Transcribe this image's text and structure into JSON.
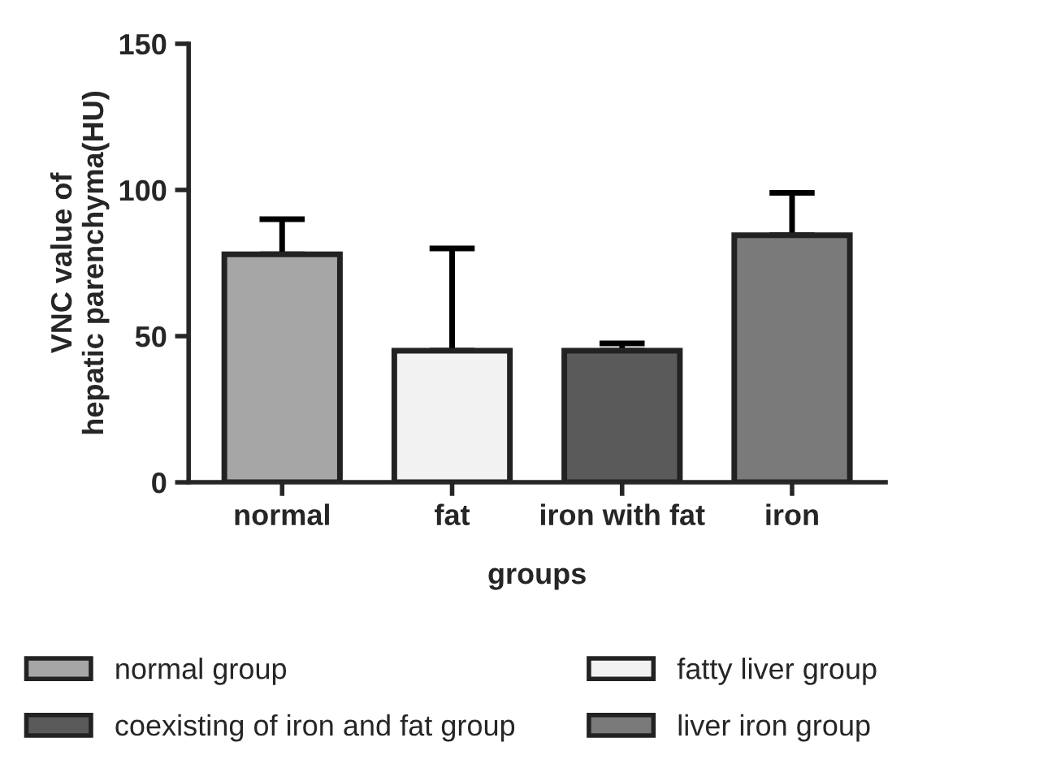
{
  "chart_data": {
    "type": "bar",
    "categories": [
      "normal",
      "fat",
      "iron with fat",
      "iron"
    ],
    "xlabel": "groups",
    "ylabel": "VNC value of\nhepatic parenchyma(HU)",
    "ylim": [
      0,
      150
    ],
    "yticks": [
      0,
      50,
      100,
      150
    ],
    "legend": "bottom",
    "grid": false,
    "series": [
      {
        "name": "normal group",
        "color": "#a6a6a6",
        "values": [
          78,
          null,
          null,
          null
        ],
        "errors": [
          [
            78,
            90
          ],
          null,
          null,
          null
        ]
      },
      {
        "name": "coexisting of iron and fat group",
        "color": "#5a5a5a",
        "values": [
          null,
          null,
          45,
          null
        ],
        "errors": [
          null,
          null,
          [
            45,
            47.5
          ],
          null
        ]
      },
      {
        "name": "fatty liver group",
        "color": "#f2f2f2",
        "values": [
          null,
          45,
          null,
          null
        ],
        "errors": [
          null,
          [
            45,
            80
          ],
          null,
          null
        ]
      },
      {
        "name": "liver iron group",
        "color": "#7a7a7a",
        "values": [
          null,
          null,
          null,
          84.5
        ],
        "errors": [
          null,
          null,
          null,
          [
            84.5,
            99
          ]
        ]
      }
    ]
  }
}
